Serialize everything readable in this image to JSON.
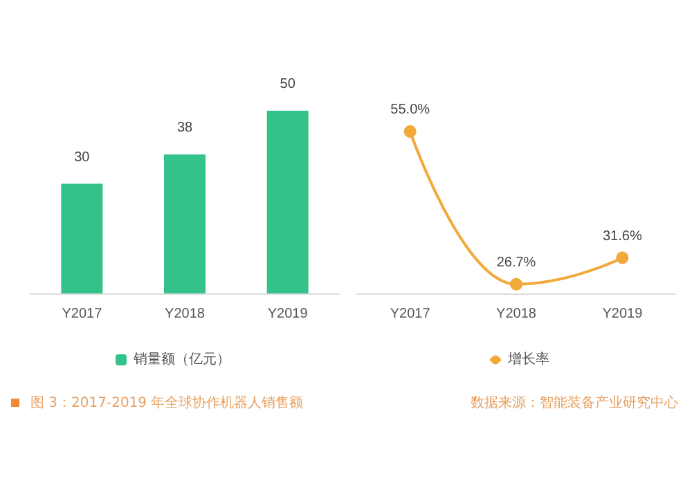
{
  "chart_data": [
    {
      "type": "bar",
      "categories": [
        "Y2017",
        "Y2018",
        "Y2019"
      ],
      "series": [
        {
          "name": "销量额（亿元）",
          "color": "#33c38a",
          "values": [
            30,
            38,
            50
          ]
        }
      ],
      "data_labels": true,
      "legend": "bottom",
      "grid": false,
      "annotations": [
        "图 3：2017-2019 年全球协作机器人销售额"
      ]
    },
    {
      "type": "line",
      "categories": [
        "Y2017",
        "Y2018",
        "Y2019"
      ],
      "series": [
        {
          "name": "增长率",
          "color": "#f0a93a",
          "values": [
            55.0,
            26.7,
            31.6
          ],
          "value_labels": [
            "55.0%",
            "26.7%",
            "31.6%"
          ]
        }
      ],
      "marker": "circle",
      "legend": "bottom",
      "grid": false,
      "annotations": [
        "数据来源：智能装备产业研究中心"
      ]
    }
  ]
}
